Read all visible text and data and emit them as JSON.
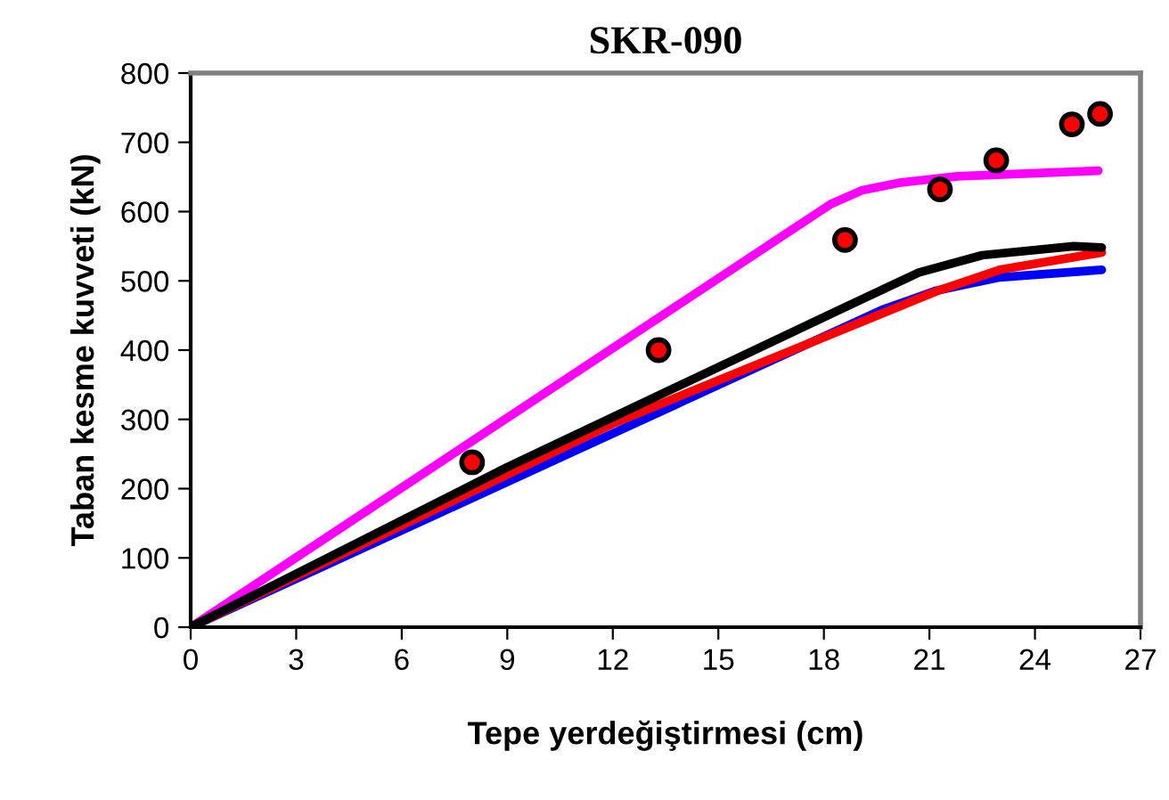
{
  "chart_data": {
    "type": "line",
    "title": "SKR-090",
    "xlabel": "Tepe yerdeğiştirmesi (cm)",
    "ylabel": "Taban kesme kuvveti (kN)",
    "xlim": [
      0,
      27
    ],
    "xticks": [
      0,
      3,
      6,
      9,
      12,
      15,
      18,
      21,
      24,
      27
    ],
    "ylim": [
      0,
      800
    ],
    "yticks": [
      0,
      100,
      200,
      300,
      400,
      500,
      600,
      700,
      800
    ],
    "grid": false,
    "series": [
      {
        "color": "#ff00ff",
        "x": [
          0,
          18.2,
          19.1,
          20.2,
          21.8,
          25.8
        ],
        "values": [
          0,
          611,
          631,
          642,
          651,
          659
        ]
      },
      {
        "color": "#0000ff",
        "x": [
          0,
          19.65,
          21.2,
          23.0,
          25.9
        ],
        "values": [
          0,
          458,
          486,
          505,
          516
        ]
      },
      {
        "color": "#ff0000",
        "x": [
          0,
          12.05,
          21.2,
          23.0,
          25.9
        ],
        "values": [
          0,
          295,
          485,
          516,
          541
        ]
      },
      {
        "color": "#000000",
        "x": [
          0,
          9.0,
          18.6,
          20.7,
          22.5,
          25.1,
          25.9
        ],
        "values": [
          0,
          231,
          462,
          512,
          537,
          550,
          548
        ]
      },
      {
        "type": "scatter",
        "marker": "circle",
        "color": "#ff0000",
        "x": [
          8.0,
          13.3,
          18.6,
          21.3,
          22.9,
          25.05,
          25.85
        ],
        "values": [
          238,
          400,
          559,
          632,
          674,
          726,
          741
        ]
      }
    ]
  }
}
